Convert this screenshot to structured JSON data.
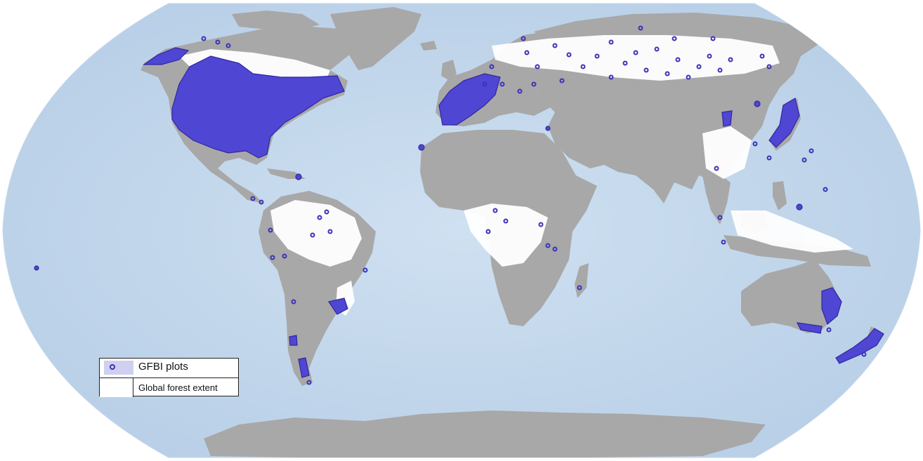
{
  "map": {
    "projection": "Robinson",
    "colors": {
      "ocean": "#c9dcef",
      "ocean_shade": "#b5cde6",
      "land": "#a8a8a8",
      "forest": "#ffffff",
      "plots": "#5046d4",
      "plot_outline": "#2f289e"
    }
  },
  "legend": {
    "items": [
      {
        "label": "GFBI plots",
        "icon": "circle-marker-icon"
      },
      {
        "label": "Global forest extent",
        "icon": "white-swatch-icon"
      }
    ]
  }
}
